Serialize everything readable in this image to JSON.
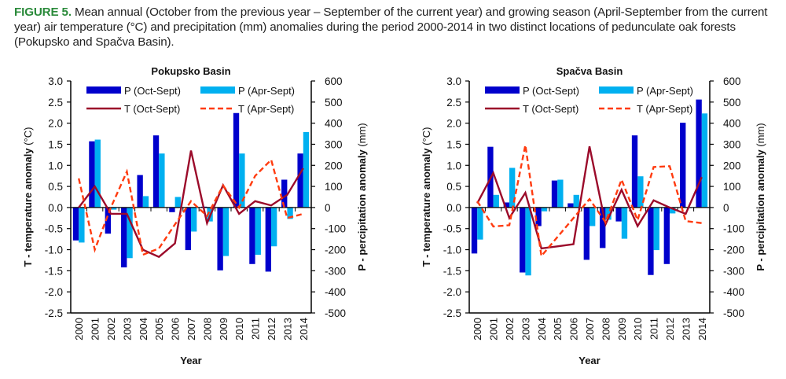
{
  "caption": {
    "label": "FIGURE 5.",
    "text": " Mean annual (October from the previous year – September of the current year) and growing season (April-September from the current year) air temperature (°C) and precipitation (mm) anomalies during the period 2000-2014 in two distinct locations of pedunculate oak forests (Pokupsko and Spačva Basin)."
  },
  "colors": {
    "p_oct": "#0000cc",
    "p_apr": "#00b0f0",
    "t_oct": "#9b0a2a",
    "t_apr": "#ff3b0f",
    "caption_label": "#2a8a3a"
  },
  "chart_data": [
    {
      "type": "bar",
      "title": "Pokupsko Basin",
      "xlabel": "Year",
      "ylabel": "T - temperature anomaly (°C)",
      "y2label": "P - percipitation anomaly (mm)",
      "ylim": [
        -2.5,
        3.0
      ],
      "y2lim": [
        -500,
        600
      ],
      "yticks": [
        "3.0",
        "2.5",
        "2.0",
        "1.5",
        "1.0",
        "0.5",
        "0.0",
        "-0.5",
        "-1.0",
        "-1.5",
        "-2.0",
        "-2.5"
      ],
      "y2ticks": [
        "600",
        "500",
        "400",
        "300",
        "200",
        "100",
        "0",
        "-100",
        "-200",
        "-300",
        "-400",
        "-500"
      ],
      "legend_position": "top",
      "categories": [
        "2000",
        "2001",
        "2002",
        "2003",
        "2004",
        "2005",
        "2006",
        "2007",
        "2008",
        "2009",
        "2010",
        "2011",
        "2012",
        "2013",
        "2014"
      ],
      "series": [
        {
          "name": "P (Oct-Sept)",
          "kind": "bar",
          "axis": "right",
          "values": [
            -156,
            314,
            -124,
            -284,
            154,
            342,
            -22,
            -202,
            4,
            -298,
            448,
            -268,
            -304,
            132,
            256
          ]
        },
        {
          "name": "P (Apr-Sept)",
          "kind": "bar",
          "axis": "right",
          "values": [
            -166,
            322,
            -10,
            -240,
            54,
            256,
            50,
            -114,
            -66,
            -230,
            256,
            -224,
            -184,
            -54,
            358
          ]
        },
        {
          "name": "T (Oct-Sept)",
          "kind": "line",
          "axis": "left",
          "values": [
            0.0,
            0.5,
            -0.15,
            -0.15,
            -1.0,
            -1.17,
            -0.85,
            1.35,
            -0.37,
            0.53,
            -0.15,
            0.15,
            0.05,
            0.3,
            0.93
          ]
        },
        {
          "name": "T (Apr-Sept)",
          "kind": "dashed-line",
          "axis": "left",
          "values": [
            0.69,
            -1.0,
            0.0,
            0.85,
            -1.12,
            -0.97,
            -0.4,
            0.15,
            -0.2,
            0.52,
            0.0,
            0.75,
            1.13,
            -0.25,
            -0.15
          ]
        }
      ]
    },
    {
      "type": "bar",
      "title": "Spačva Basin",
      "xlabel": "Year",
      "ylabel": "T - temperature anomaly (°C)",
      "y2label": "P - percipitation anomaly (mm)",
      "ylim": [
        -2.5,
        3.0
      ],
      "y2lim": [
        -500,
        600
      ],
      "yticks": [
        "3.0",
        "2.5",
        "2.0",
        "1.5",
        "1.0",
        "0.5",
        "0.0",
        "-0.5",
        "-1.0",
        "-1.5",
        "-2.0",
        "-2.5"
      ],
      "y2ticks": [
        "600",
        "500",
        "400",
        "300",
        "200",
        "100",
        "0",
        "-100",
        "-200",
        "-300",
        "-400",
        "-500"
      ],
      "legend_position": "top",
      "categories": [
        "2000",
        "2001",
        "2002",
        "2003",
        "2004",
        "2005",
        "2006",
        "2007",
        "2008",
        "2009",
        "2010",
        "2011",
        "2012",
        "2013",
        "2014"
      ],
      "series": [
        {
          "name": "P (Oct-Sept)",
          "kind": "bar",
          "axis": "right",
          "values": [
            -218,
            288,
            24,
            -308,
            -88,
            128,
            20,
            -248,
            -192,
            -66,
            342,
            -320,
            -268,
            402,
            512
          ]
        },
        {
          "name": "P (Apr-Sept)",
          "kind": "bar",
          "axis": "right",
          "values": [
            -152,
            60,
            188,
            -322,
            -18,
            132,
            60,
            -88,
            -58,
            -148,
            148,
            -202,
            -28,
            -2,
            446
          ]
        },
        {
          "name": "T (Oct-Sept)",
          "kind": "line",
          "axis": "left",
          "values": [
            0.1,
            0.82,
            -0.25,
            0.35,
            -0.97,
            -0.92,
            -0.87,
            1.45,
            -0.4,
            0.42,
            -0.44,
            0.17,
            0.0,
            -0.15,
            0.72
          ]
        },
        {
          "name": "T (Apr-Sept)",
          "kind": "dashed-line",
          "axis": "left",
          "values": [
            0.15,
            -0.45,
            -0.42,
            1.48,
            -1.15,
            -0.7,
            -0.25,
            0.2,
            -0.35,
            0.66,
            -0.3,
            0.96,
            0.98,
            -0.32,
            -0.37
          ]
        }
      ]
    }
  ]
}
